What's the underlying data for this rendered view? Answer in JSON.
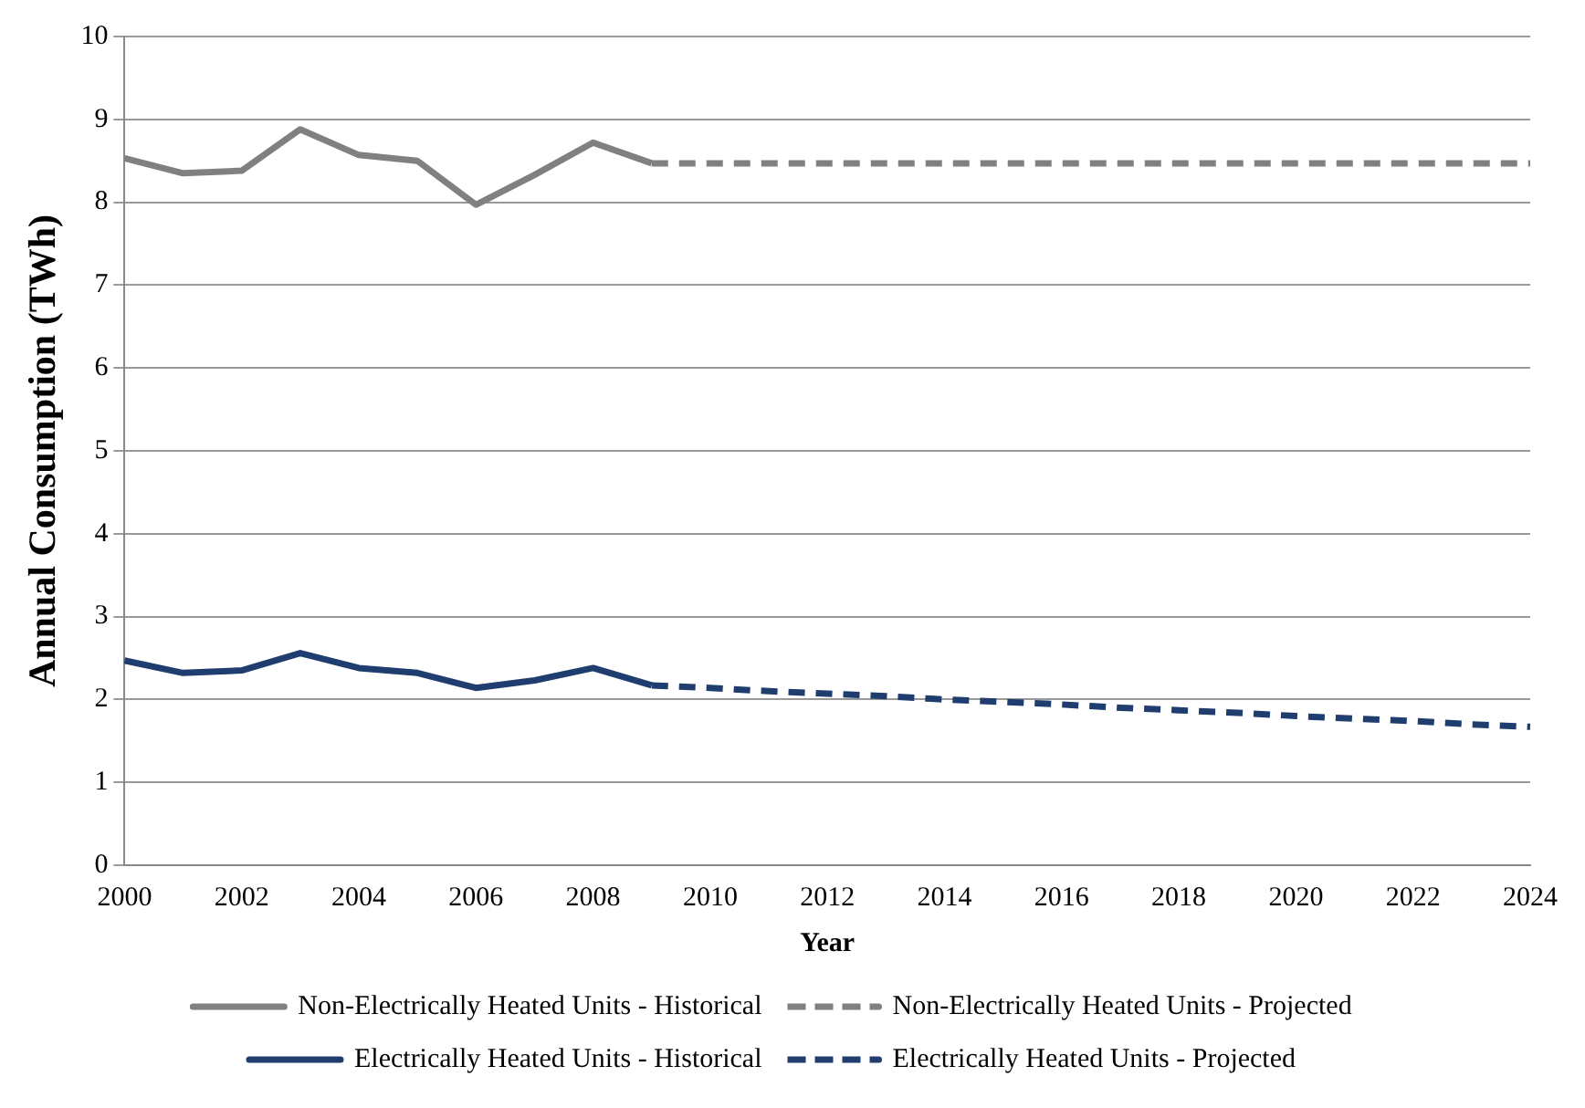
{
  "chart_data": {
    "type": "line",
    "xlabel": "Year",
    "ylabel": "Annual Consumption (TWh)",
    "categories": [
      "2000",
      null,
      "2002",
      null,
      "2004",
      null,
      "2006",
      null,
      "2008",
      null,
      "2010",
      null,
      "2012",
      null,
      "2014",
      null,
      "2016",
      null,
      "2018",
      null,
      "2020",
      null,
      "2022",
      null,
      "2024"
    ],
    "series": [
      {
        "name": "Non-Electrically Heated Units - Historical",
        "color": "#808080",
        "line_style": "solid",
        "values": [
          8.53,
          8.35,
          8.38,
          8.88,
          8.57,
          8.5,
          7.97,
          8.33,
          8.72,
          8.47,
          null,
          null,
          null,
          null,
          null,
          null,
          null,
          null,
          null,
          null,
          null,
          null,
          null,
          null,
          null
        ]
      },
      {
        "name": "Non-Electrically Heated Units - Projected",
        "color": "#808080",
        "line_style": "dashed",
        "values": [
          null,
          null,
          null,
          null,
          null,
          null,
          null,
          null,
          null,
          8.47,
          8.47,
          8.47,
          8.47,
          8.47,
          8.47,
          8.47,
          8.47,
          8.47,
          8.47,
          8.47,
          8.47,
          8.47,
          8.47,
          8.47,
          8.47
        ]
      },
      {
        "name": "Electrically Heated Units - Historical",
        "color": "#1f3d6e",
        "line_style": "solid",
        "values": [
          2.47,
          2.32,
          2.35,
          2.56,
          2.38,
          2.32,
          2.14,
          2.23,
          2.38,
          2.17,
          null,
          null,
          null,
          null,
          null,
          null,
          null,
          null,
          null,
          null,
          null,
          null,
          null,
          null,
          null
        ]
      },
      {
        "name": "Electrically Heated Units - Projected",
        "color": "#1f3d6e",
        "line_style": "dashed",
        "values": [
          null,
          null,
          null,
          null,
          null,
          null,
          null,
          null,
          null,
          2.17,
          2.14,
          2.1,
          2.07,
          2.04,
          2.0,
          1.97,
          1.94,
          1.9,
          1.87,
          1.84,
          1.8,
          1.77,
          1.74,
          1.7,
          1.67
        ]
      }
    ],
    "ylim": [
      0,
      10
    ],
    "yticks": [
      0,
      1,
      2,
      3,
      4,
      5,
      6,
      7,
      8,
      9,
      10
    ],
    "grid": "y",
    "legend": "bottom",
    "marker": "none"
  }
}
